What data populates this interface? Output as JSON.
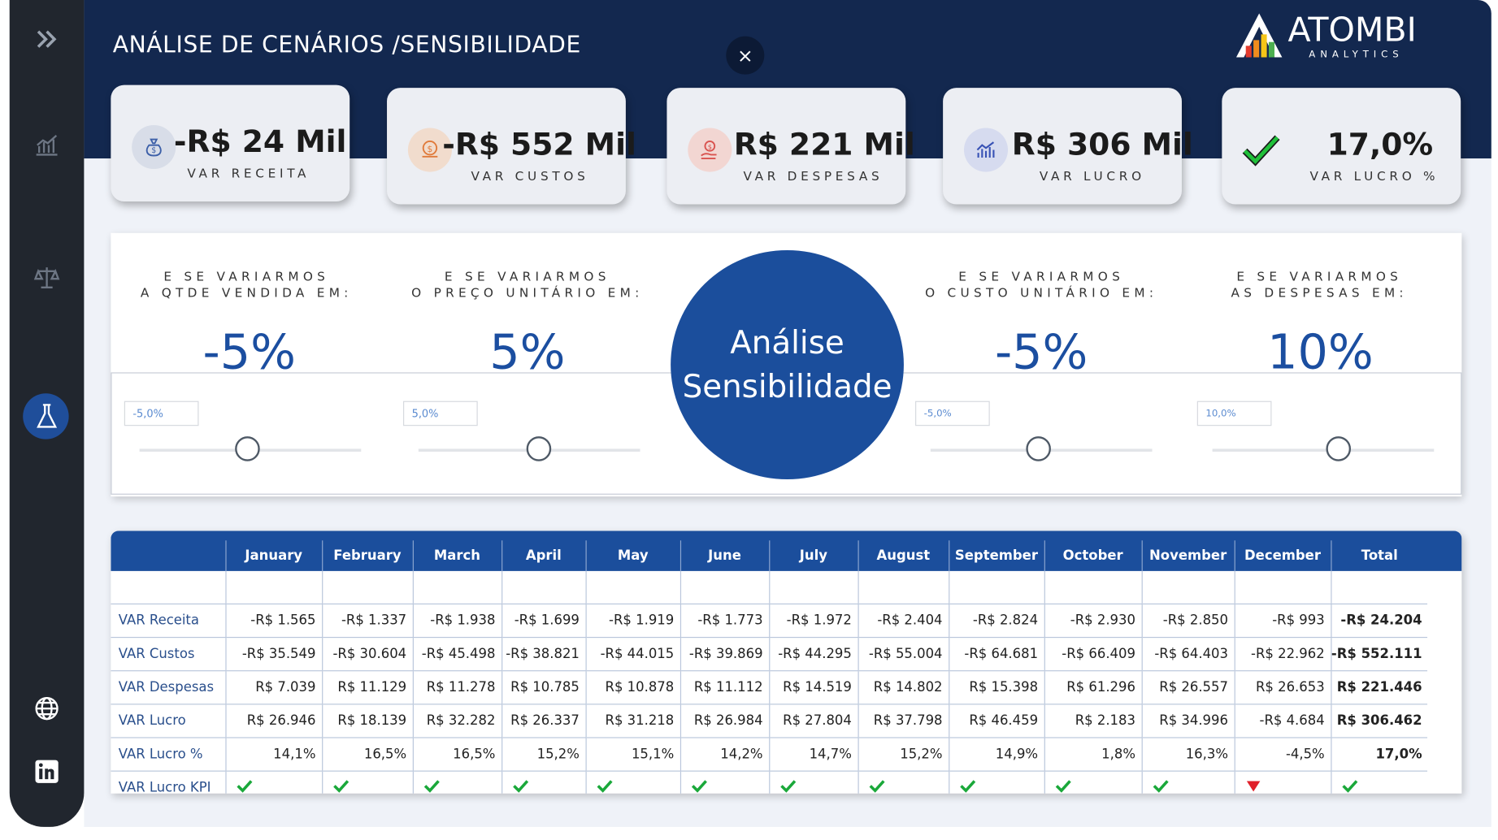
{
  "header": {
    "title": "ANÁLISE DE CENÁRIOS /SENSIBILIDADE",
    "close_label": "×",
    "logo_text": "ATOMBI",
    "logo_sub": "ANALYTICS"
  },
  "sidebar": {
    "items": [
      {
        "name": "expand-icon",
        "active": false
      },
      {
        "name": "chart-icon",
        "active": false
      },
      {
        "name": "scale-icon",
        "active": false
      },
      {
        "name": "flask-icon",
        "active": true
      },
      {
        "name": "globe-icon",
        "active": false
      },
      {
        "name": "linkedin-icon",
        "active": false
      }
    ]
  },
  "kpis": [
    {
      "value": "-R$ 24 Mil",
      "label": "VAR RECEITA",
      "icon": "money-bag-icon",
      "icon_bg": "#d8dde8"
    },
    {
      "value": "-R$ 552 Mil",
      "label": "VAR CUSTOS",
      "icon": "coins-icon",
      "icon_bg": "#f1dccd"
    },
    {
      "value": "R$ 221 Mil",
      "label": "VAR DESPESAS",
      "icon": "hand-money-icon",
      "icon_bg": "#f2d6d2"
    },
    {
      "value": "R$ 306 Mil",
      "label": "VAR LUCRO",
      "icon": "bar-chart-icon",
      "icon_bg": "#d6dbef"
    },
    {
      "value": "17,0%",
      "label": "VAR LUCRO %",
      "icon": "check-icon",
      "icon_bg": ""
    }
  ],
  "sensitivity": {
    "center_line1": "Análise",
    "center_line2": "Sensibilidade",
    "sliders": [
      {
        "question_line1": "E SE VARIARMOS",
        "question_line2": "A QTDE VENDIDA EM:",
        "value": "-5%",
        "input": "-5,0%",
        "level": -0.05
      },
      {
        "question_line1": "E SE VARIARMOS",
        "question_line2": "O PREÇO UNITÁRIO EM:",
        "value": "5%",
        "input": "5,0%",
        "level": 0.05
      },
      {
        "question_line1": "E SE VARIARMOS",
        "question_line2": "O CUSTO UNITÁRIO EM:",
        "value": "-5%",
        "input": "-5,0%",
        "level": -0.05
      },
      {
        "question_line1": "E SE VARIARMOS",
        "question_line2": "AS DESPESAS EM:",
        "value": "10%",
        "input": "10,0%",
        "level": 0.1
      }
    ]
  },
  "table": {
    "columns": [
      "January",
      "February",
      "March",
      "April",
      "May",
      "June",
      "July",
      "August",
      "September",
      "October",
      "November",
      "December",
      "Total"
    ],
    "rows": [
      {
        "label": "VAR Receita",
        "values": [
          "-R$ 1.565",
          "-R$ 1.337",
          "-R$ 1.938",
          "-R$ 1.699",
          "-R$ 1.919",
          "-R$ 1.773",
          "-R$ 1.972",
          "-R$ 2.404",
          "-R$ 2.824",
          "-R$ 2.930",
          "-R$ 2.850",
          "-R$ 993",
          "-R$ 24.204"
        ]
      },
      {
        "label": "VAR Custos",
        "values": [
          "-R$ 35.549",
          "-R$ 30.604",
          "-R$ 45.498",
          "-R$ 38.821",
          "-R$ 44.015",
          "-R$ 39.869",
          "-R$ 44.295",
          "-R$ 55.004",
          "-R$ 64.681",
          "-R$ 66.409",
          "-R$ 64.403",
          "-R$ 22.962",
          "-R$ 552.111"
        ]
      },
      {
        "label": "VAR Despesas",
        "values": [
          "R$ 7.039",
          "R$ 11.129",
          "R$ 11.278",
          "R$ 10.785",
          "R$ 10.878",
          "R$ 11.112",
          "R$ 14.519",
          "R$ 14.802",
          "R$ 15.398",
          "R$ 61.296",
          "R$ 26.557",
          "R$ 26.653",
          "R$ 221.446"
        ]
      },
      {
        "label": "VAR Lucro",
        "values": [
          "R$ 26.946",
          "R$ 18.139",
          "R$ 32.282",
          "R$ 26.337",
          "R$ 31.218",
          "R$ 26.984",
          "R$ 27.804",
          "R$ 37.798",
          "R$ 46.459",
          "R$ 2.183",
          "R$ 34.996",
          "-R$ 4.684",
          "R$ 306.462"
        ]
      },
      {
        "label": "VAR Lucro %",
        "values": [
          "14,1%",
          "16,5%",
          "16,5%",
          "15,2%",
          "15,1%",
          "14,2%",
          "14,7%",
          "15,2%",
          "14,9%",
          "1,8%",
          "16,3%",
          "-4,5%",
          "17,0%"
        ]
      }
    ],
    "kpi_row": {
      "label": "VAR Lucro KPI",
      "status": [
        "up",
        "up",
        "up",
        "up",
        "up",
        "up",
        "up",
        "up",
        "up",
        "up",
        "up",
        "down",
        "up"
      ]
    }
  }
}
